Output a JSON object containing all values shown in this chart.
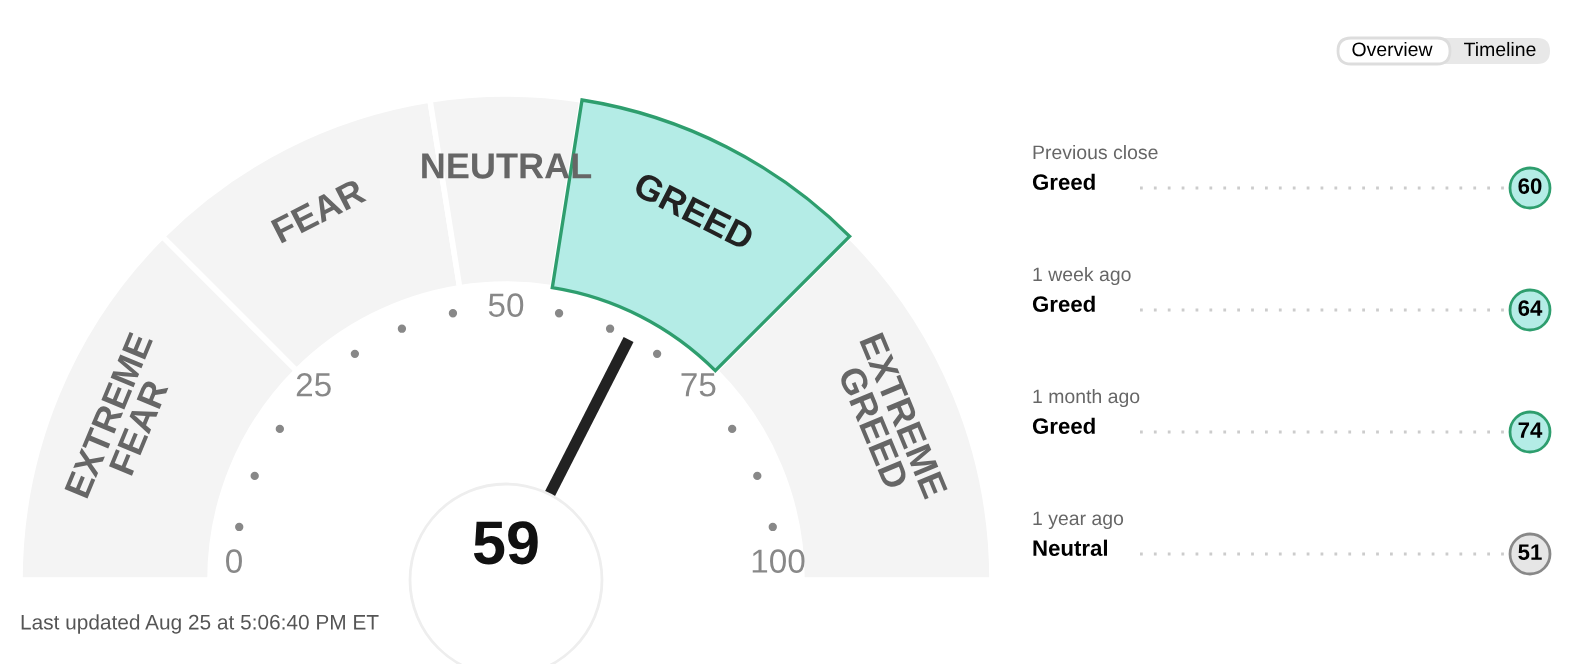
{
  "chart_data": [
    {
      "type": "donut",
      "categories": [
        "EXTREME\nFEAR",
        "FEAR",
        "NEUTRAL",
        "GREED",
        "EXTREME\nGREED"
      ],
      "values": [
        25,
        20,
        10,
        20,
        25
      ],
      "colors": [
        "#f4f4f4",
        "#f4f4f4",
        "#f4f4f4",
        "#b4ece6",
        "#f4f4f4"
      ],
      "needle": "GREED",
      "annotations": [
        "0",
        "25",
        "50",
        "75",
        "100",
        "59",
        "Last updated Aug 25 at 5:06:40 PM ET"
      ]
    },
    {
      "type": "other",
      "categories": [
        "Previous close",
        "1 week ago",
        "1 month ago",
        "1 year ago"
      ],
      "values": [
        60,
        64,
        74,
        51
      ],
      "colors": [
        "#b4ece6",
        "#b4ece6",
        "#b4ece6",
        "#e6e6e6"
      ],
      "data_labels": true,
      "annotations": [
        "Overview",
        "Timeline",
        "Greed",
        "Greed",
        "Greed",
        "Neutral"
      ]
    }
  ]
}
